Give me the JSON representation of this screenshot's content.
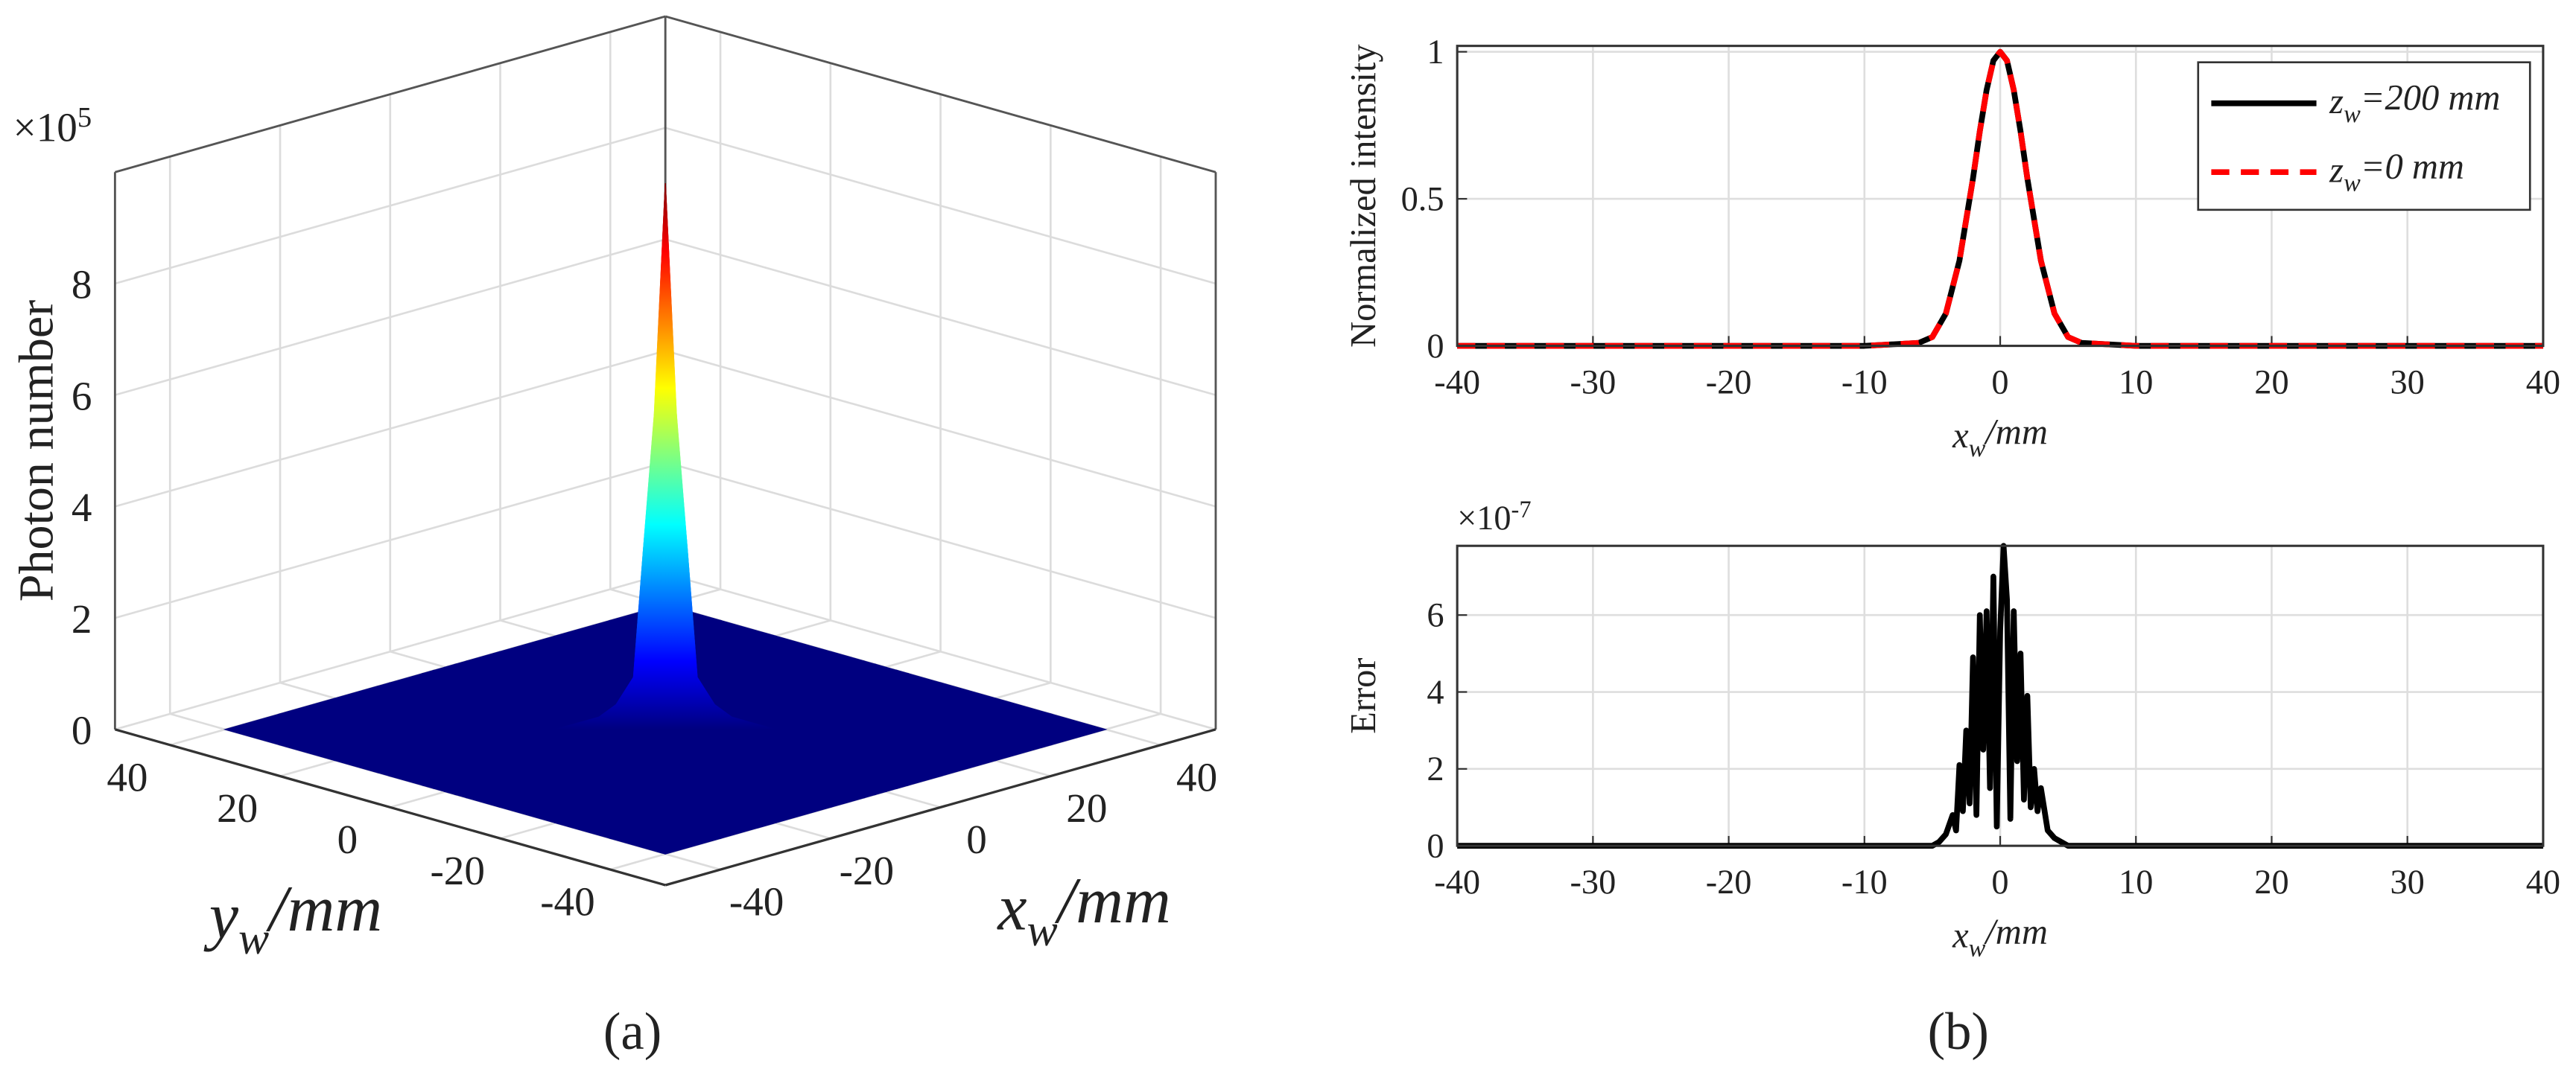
{
  "panel_labels": [
    "(a)",
    "(b)"
  ],
  "chart_data": [
    {
      "type": "surface3d",
      "zlabel": "Photon number",
      "xlabel": {
        "main": "x",
        "sub": "w",
        "rest": "/mm"
      },
      "ylabel": {
        "main": "y",
        "sub": "w",
        "rest": "/mm"
      },
      "zscale_label": {
        "main": "×10",
        "sup": "5"
      },
      "colormap": "jet",
      "xlim": [
        -50,
        50
      ],
      "ylim": [
        -50,
        50
      ],
      "zlim": [
        0,
        10
      ],
      "xticks": [
        -40,
        -20,
        0,
        20,
        40
      ],
      "yticks": [
        -40,
        -20,
        0,
        20,
        40
      ],
      "zticks": [
        0,
        2,
        4,
        6,
        8
      ],
      "grid": true,
      "x": [
        -40,
        -30,
        -20,
        -10,
        -4,
        -2,
        0,
        2,
        4,
        10,
        20,
        30,
        40
      ],
      "y": [
        -40,
        -30,
        -20,
        -10,
        -4,
        -2,
        0,
        2,
        4,
        10,
        20,
        30,
        40
      ],
      "z": [
        [
          0,
          0,
          0,
          0,
          0,
          0,
          0,
          0,
          0,
          0,
          0,
          0,
          0
        ],
        [
          0,
          0,
          0,
          0,
          0,
          0,
          0,
          0,
          0,
          0,
          0,
          0,
          0
        ],
        [
          0,
          0,
          0,
          0,
          0,
          0,
          0,
          0,
          0,
          0,
          0,
          0,
          0
        ],
        [
          0,
          0,
          0,
          0,
          0,
          0,
          0,
          0,
          0,
          0,
          0,
          0,
          0
        ],
        [
          0,
          0,
          0,
          0,
          0.1,
          0.6,
          1.1,
          0.6,
          0.1,
          0,
          0,
          0,
          0
        ],
        [
          0,
          0,
          0,
          0,
          0.6,
          3.2,
          5.6,
          3.2,
          0.6,
          0,
          0,
          0,
          0
        ],
        [
          0,
          0,
          0,
          0,
          1.1,
          5.6,
          9.8,
          5.6,
          1.1,
          0,
          0,
          0,
          0
        ],
        [
          0,
          0,
          0,
          0,
          0.6,
          3.2,
          5.6,
          3.2,
          0.6,
          0,
          0,
          0,
          0
        ],
        [
          0,
          0,
          0,
          0,
          0.1,
          0.6,
          1.1,
          0.6,
          0.1,
          0,
          0,
          0,
          0
        ],
        [
          0,
          0,
          0,
          0,
          0,
          0,
          0,
          0,
          0,
          0,
          0,
          0,
          0
        ],
        [
          0,
          0,
          0,
          0,
          0,
          0,
          0,
          0,
          0,
          0,
          0,
          0,
          0
        ],
        [
          0,
          0,
          0,
          0,
          0,
          0,
          0,
          0,
          0,
          0,
          0,
          0,
          0
        ],
        [
          0,
          0,
          0,
          0,
          0,
          0,
          0,
          0,
          0,
          0,
          0,
          0,
          0
        ]
      ]
    },
    {
      "type": "line",
      "ylabel": "Normalized intensity",
      "xlabel": {
        "main": "x",
        "sub": "w",
        "rest": "/mm"
      },
      "xlim": [
        -40,
        40
      ],
      "ylim": [
        0,
        1.02
      ],
      "xticks": [
        -40,
        -30,
        -20,
        -10,
        0,
        10,
        20,
        30,
        40
      ],
      "yticks": [
        0,
        0.5,
        1
      ],
      "grid": true,
      "legend": "northeast",
      "x": [
        -40,
        -10,
        -6,
        -5,
        -4,
        -3,
        -2,
        -1.5,
        -1,
        -0.5,
        0,
        0.5,
        1,
        1.5,
        2,
        3,
        4,
        5,
        6,
        10,
        40
      ],
      "series": [
        {
          "name": {
            "main": "z",
            "sub": "w",
            "rest": "=200 mm"
          },
          "color": "#000000",
          "style": "solid",
          "values": [
            0,
            0,
            0.01,
            0.03,
            0.11,
            0.29,
            0.57,
            0.73,
            0.87,
            0.97,
            1,
            0.97,
            0.87,
            0.73,
            0.57,
            0.29,
            0.11,
            0.03,
            0.01,
            0,
            0
          ]
        },
        {
          "name": {
            "main": "z",
            "sub": "w",
            "rest": "=0 mm"
          },
          "color": "#ff0000",
          "style": "dashed",
          "values": [
            0,
            0,
            0.01,
            0.03,
            0.11,
            0.29,
            0.57,
            0.73,
            0.87,
            0.97,
            1,
            0.97,
            0.87,
            0.73,
            0.57,
            0.29,
            0.11,
            0.03,
            0.01,
            0,
            0
          ]
        }
      ]
    },
    {
      "type": "line",
      "ylabel": "Error",
      "xlabel": {
        "main": "x",
        "sub": "w",
        "rest": "/mm"
      },
      "yscale_label": {
        "main": "×10",
        "sup": "-7"
      },
      "xlim": [
        -40,
        40
      ],
      "ylim": [
        0,
        7.8
      ],
      "xticks": [
        -40,
        -30,
        -20,
        -10,
        0,
        10,
        20,
        30,
        40
      ],
      "yticks": [
        0,
        2,
        4,
        6
      ],
      "grid": true,
      "x": [
        -40,
        -5,
        -4.5,
        -4,
        -3.5,
        -3.25,
        -3,
        -2.75,
        -2.5,
        -2.25,
        -2,
        -1.75,
        -1.5,
        -1.25,
        -1,
        -0.75,
        -0.5,
        -0.25,
        0,
        0.25,
        0.5,
        0.75,
        1,
        1.25,
        1.5,
        1.75,
        2,
        2.25,
        2.5,
        2.75,
        3,
        3.5,
        4,
        4.5,
        5,
        40
      ],
      "series": [
        {
          "color": "#000000",
          "style": "solid",
          "values": [
            0,
            0,
            0.1,
            0.3,
            0.8,
            0.4,
            2.1,
            0.9,
            3.0,
            1.1,
            4.9,
            0.8,
            6.0,
            2.5,
            6.1,
            1.5,
            7.0,
            0.5,
            5.6,
            7.8,
            6.4,
            0.7,
            6.1,
            2.2,
            5.0,
            1.2,
            3.9,
            1.0,
            2.0,
            0.9,
            1.5,
            0.4,
            0.2,
            0.1,
            0,
            0
          ]
        }
      ]
    }
  ]
}
